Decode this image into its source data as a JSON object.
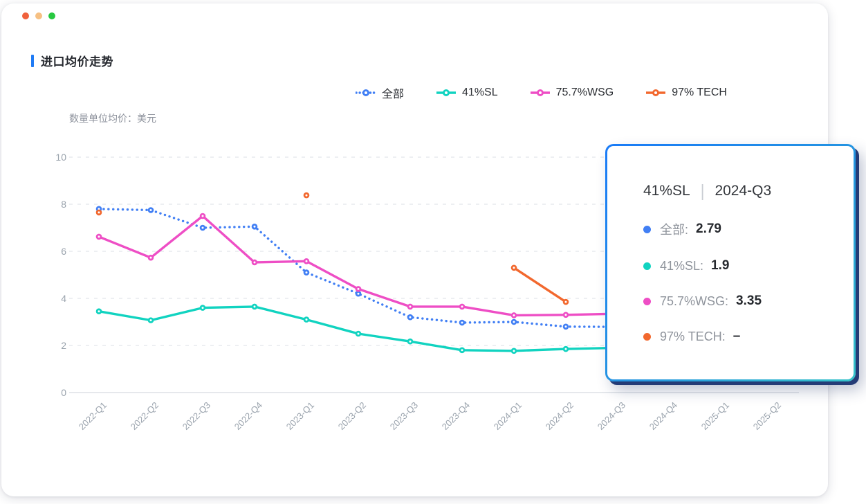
{
  "window": {
    "traffic_lights": [
      {
        "name": "red",
        "color": "#f0613c"
      },
      {
        "name": "yellow",
        "color": "#f6c083"
      },
      {
        "name": "green",
        "color": "#27c840"
      }
    ]
  },
  "header": {
    "title": "进口均价走势",
    "accent_color": "#1f7bf5"
  },
  "unit_label": "数量单位均价：美元",
  "legend": {
    "items": [
      {
        "label": "全部",
        "color": "#417ff4",
        "style": "dotted"
      },
      {
        "label": "41%SL",
        "color": "#11d3c0",
        "style": "solid"
      },
      {
        "label": "75.7%WSG",
        "color": "#ee4ec5",
        "style": "solid"
      },
      {
        "label": "97% TECH",
        "color": "#f2682e",
        "style": "solid"
      }
    ]
  },
  "chart_data": {
    "type": "line",
    "title": "进口均价走势",
    "xlabel": "",
    "ylabel": "数量单位均价：美元",
    "ylim": [
      0,
      10
    ],
    "yticks": [
      0,
      2,
      4,
      6,
      8,
      10
    ],
    "grid": "dashed-horizontal",
    "legend_position": "top",
    "categories": [
      "2022-Q1",
      "2022-Q2",
      "2022-Q3",
      "2022-Q4",
      "2023-Q1",
      "2023-Q2",
      "2023-Q3",
      "2023-Q4",
      "2024-Q1",
      "2024-Q2",
      "2024-Q3",
      "2024-Q4",
      "2025-Q1",
      "2025-Q2"
    ],
    "series": [
      {
        "name": "全部",
        "color": "#417ff4",
        "style": "dotted",
        "values": [
          7.8,
          7.75,
          7.0,
          7.05,
          5.1,
          4.2,
          3.2,
          2.97,
          3.0,
          2.8,
          2.79,
          null,
          null,
          null
        ]
      },
      {
        "name": "41%SL",
        "color": "#11d3c0",
        "style": "solid",
        "values": [
          3.45,
          3.07,
          3.6,
          3.65,
          3.1,
          2.5,
          2.17,
          1.8,
          1.77,
          1.85,
          1.9,
          null,
          null,
          null
        ]
      },
      {
        "name": "75.7%WSG",
        "color": "#ee4ec5",
        "style": "solid",
        "values": [
          6.62,
          5.73,
          7.5,
          5.53,
          5.58,
          4.4,
          3.65,
          3.65,
          3.28,
          3.3,
          3.35,
          null,
          null,
          null
        ]
      },
      {
        "name": "97% TECH",
        "color": "#f2682e",
        "style": "solid",
        "values": [
          7.65,
          null,
          null,
          null,
          8.38,
          null,
          null,
          null,
          5.3,
          3.85,
          null,
          null,
          null,
          null
        ]
      }
    ],
    "axis_colors": {
      "label": "#9aa3ad",
      "grid": "#e2e5ea",
      "baseline": "#dde1e6"
    }
  },
  "tooltip": {
    "header": {
      "series": "41%SL",
      "divider": "|",
      "period": "2024-Q3"
    },
    "rows": [
      {
        "label": "全部:",
        "value": "2.79",
        "color": "#417ff4"
      },
      {
        "label": "41%SL:",
        "value": "1.9",
        "color": "#11d3c0"
      },
      {
        "label": "75.7%WSG:",
        "value": "3.35",
        "color": "#ee4ec5"
      },
      {
        "label": "97% TECH:",
        "value": "–",
        "color": "#f2682e"
      }
    ]
  }
}
